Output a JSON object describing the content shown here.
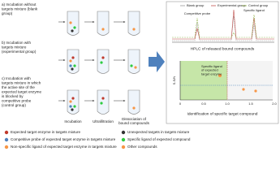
{
  "rows": [
    {
      "label": [
        "a) Incubation without",
        "targets mixture (blank",
        "group)"
      ]
    },
    {
      "label": [
        "b) Incubation with",
        "targets mixture",
        "(experimental group)"
      ]
    },
    {
      "label": [
        "c) Incubation with",
        "targets mixture in which",
        "the active site of the",
        "expected target enzyme",
        "is blocked by",
        "competitive probe",
        "(control group)"
      ]
    }
  ],
  "steps": [
    [
      "Incubation"
    ],
    [
      "Ultrafiltration"
    ],
    [
      "Dissociation of",
      "bound compounds"
    ]
  ],
  "hplc": {
    "legend": [
      "Blank group",
      "Experimental group",
      "Control group"
    ],
    "peak_labels": [
      "Competitive probe",
      "Specific ligand"
    ],
    "caption": "HPLC of released bound compounds"
  },
  "plot": {
    "y_label": "S-S/N",
    "x_ticks": [
      "0",
      "0.5",
      "1.0",
      "1.5",
      "2.0"
    ],
    "annotation": [
      "Specific ligand",
      "of expected",
      "target enzyme"
    ],
    "caption": "Identification of specific target compound"
  },
  "legend": [
    "Expected target enzyme in targets mixture",
    "Competitive probe of expected target enzyme in targets mixture",
    "Non-specific ligand of expected target enzyme in targets mixture",
    "Unexpected targets in targets mixture",
    "Specific ligand of expected compound",
    "Other compounds"
  ]
}
